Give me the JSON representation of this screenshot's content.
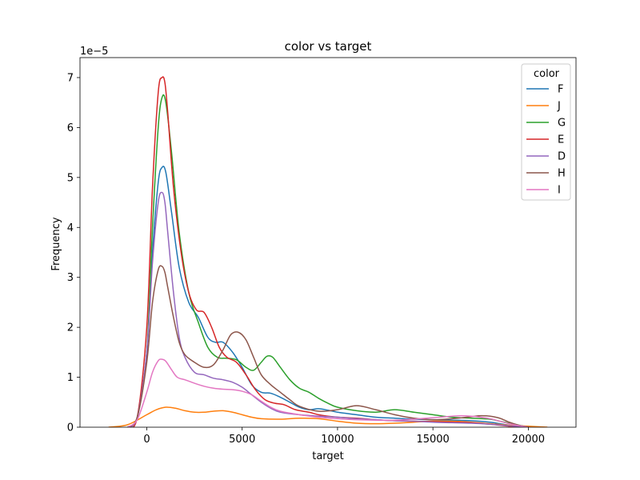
{
  "chart_data": {
    "type": "line",
    "title": "color vs target",
    "xlabel": "target",
    "ylabel": "Frequency",
    "y_offset_label": "1e−5",
    "xlim": [
      -3500,
      22500
    ],
    "ylim": [
      0,
      7.4
    ],
    "x_ticks": [
      0,
      5000,
      10000,
      15000,
      20000
    ],
    "x_tick_labels": [
      "0",
      "5000",
      "10000",
      "15000",
      "20000"
    ],
    "y_ticks": [
      0,
      1,
      2,
      3,
      4,
      5,
      6,
      7
    ],
    "y_tick_labels": [
      "0",
      "1",
      "2",
      "3",
      "4",
      "5",
      "6",
      "7"
    ],
    "grid": false,
    "legend": {
      "title": "color",
      "placement": "top-right"
    },
    "series": [
      {
        "name": "F",
        "color": "#1f77b4",
        "x": [
          -1000,
          -500,
          0,
          300,
          600,
          800,
          1000,
          1300,
          1700,
          2200,
          2700,
          3200,
          3600,
          4000,
          4500,
          5000,
          5500,
          6000,
          6500,
          7000,
          7500,
          8000,
          8500,
          9000,
          9500,
          10000,
          11000,
          12000,
          13000,
          14000,
          15000,
          16000,
          17000,
          18000,
          18500,
          19000,
          19500,
          20000
        ],
        "y": [
          0.0,
          0.2,
          1.5,
          3.5,
          4.9,
          5.2,
          5.1,
          4.3,
          3.2,
          2.5,
          2.2,
          1.8,
          1.7,
          1.7,
          1.5,
          1.2,
          0.85,
          0.7,
          0.68,
          0.6,
          0.5,
          0.4,
          0.35,
          0.37,
          0.34,
          0.3,
          0.25,
          0.2,
          0.18,
          0.16,
          0.15,
          0.14,
          0.13,
          0.1,
          0.07,
          0.04,
          0.02,
          0.0
        ]
      },
      {
        "name": "J",
        "color": "#ff7f0e",
        "x": [
          -2000,
          -1000,
          0,
          500,
          1000,
          1500,
          2000,
          2500,
          3000,
          3500,
          4000,
          4500,
          5000,
          5500,
          6000,
          7000,
          8000,
          9000,
          10000,
          11000,
          12000,
          13000,
          14000,
          15000,
          16000,
          17000,
          18000,
          19000,
          20000,
          21000
        ],
        "y": [
          0.0,
          0.05,
          0.25,
          0.35,
          0.4,
          0.38,
          0.33,
          0.3,
          0.3,
          0.32,
          0.33,
          0.3,
          0.25,
          0.2,
          0.17,
          0.16,
          0.18,
          0.17,
          0.12,
          0.08,
          0.07,
          0.08,
          0.1,
          0.12,
          0.12,
          0.1,
          0.07,
          0.04,
          0.02,
          0.0
        ]
      },
      {
        "name": "G",
        "color": "#2ca02c",
        "x": [
          -1000,
          -500,
          0,
          300,
          600,
          800,
          1000,
          1300,
          1700,
          2200,
          2700,
          3200,
          3700,
          4200,
          4700,
          5200,
          5600,
          6000,
          6300,
          6600,
          7000,
          7500,
          8000,
          8500,
          9000,
          9500,
          10000,
          11000,
          12000,
          13000,
          14000,
          15000,
          16000,
          17000,
          18000,
          18500,
          19000,
          19500,
          20000
        ],
        "y": [
          0.0,
          0.2,
          1.5,
          4.0,
          6.0,
          6.6,
          6.5,
          5.5,
          3.9,
          2.7,
          2.1,
          1.6,
          1.4,
          1.38,
          1.35,
          1.2,
          1.14,
          1.3,
          1.42,
          1.4,
          1.2,
          0.95,
          0.78,
          0.7,
          0.58,
          0.48,
          0.4,
          0.33,
          0.3,
          0.35,
          0.3,
          0.25,
          0.2,
          0.18,
          0.16,
          0.12,
          0.08,
          0.04,
          0.0
        ]
      },
      {
        "name": "E",
        "color": "#d62728",
        "x": [
          -1000,
          -500,
          0,
          300,
          600,
          800,
          950,
          1100,
          1400,
          1800,
          2200,
          2600,
          3000,
          3400,
          3800,
          4200,
          4700,
          5200,
          5700,
          6200,
          6700,
          7200,
          7800,
          8500,
          9000,
          9500,
          10000,
          11000,
          12000,
          13000,
          14000,
          15000,
          16000,
          17000,
          18000,
          18500,
          19000,
          19500,
          20000
        ],
        "y": [
          0.0,
          0.2,
          2.0,
          4.8,
          6.7,
          7.0,
          6.9,
          6.3,
          4.8,
          3.5,
          2.7,
          2.35,
          2.3,
          2.0,
          1.6,
          1.4,
          1.3,
          1.05,
          0.75,
          0.55,
          0.48,
          0.45,
          0.35,
          0.3,
          0.25,
          0.22,
          0.2,
          0.18,
          0.15,
          0.13,
          0.12,
          0.11,
          0.1,
          0.09,
          0.06,
          0.04,
          0.02,
          0.01,
          0.0
        ]
      },
      {
        "name": "D",
        "color": "#9467bd",
        "x": [
          -1000,
          -500,
          0,
          300,
          600,
          800,
          950,
          1100,
          1400,
          1700,
          2000,
          2500,
          3000,
          3500,
          4000,
          4500,
          5000,
          5500,
          6000,
          6500,
          7000,
          8000,
          9000,
          10000,
          11000,
          12000,
          13000,
          14000,
          15000,
          16000,
          17000,
          18000,
          19000,
          20000
        ],
        "y": [
          0.0,
          0.2,
          1.5,
          3.3,
          4.5,
          4.7,
          4.5,
          3.9,
          2.7,
          1.8,
          1.4,
          1.1,
          1.05,
          0.98,
          0.95,
          0.9,
          0.8,
          0.65,
          0.5,
          0.38,
          0.3,
          0.25,
          0.22,
          0.2,
          0.17,
          0.15,
          0.13,
          0.12,
          0.1,
          0.09,
          0.08,
          0.06,
          0.03,
          0.0
        ]
      },
      {
        "name": "H",
        "color": "#8c564b",
        "x": [
          -1000,
          -500,
          0,
          300,
          600,
          800,
          950,
          1100,
          1400,
          1700,
          2000,
          2500,
          3000,
          3500,
          4000,
          4400,
          4800,
          5200,
          5600,
          6000,
          6500,
          7000,
          7500,
          8000,
          9000,
          10000,
          11000,
          12000,
          13000,
          14000,
          15000,
          16000,
          17000,
          17500,
          18000,
          18500,
          19000,
          19500,
          20000
        ],
        "y": [
          0.0,
          0.2,
          1.3,
          2.5,
          3.15,
          3.22,
          3.1,
          2.8,
          2.2,
          1.7,
          1.45,
          1.3,
          1.2,
          1.25,
          1.55,
          1.85,
          1.9,
          1.75,
          1.4,
          1.05,
          0.85,
          0.7,
          0.55,
          0.42,
          0.32,
          0.35,
          0.43,
          0.35,
          0.25,
          0.18,
          0.15,
          0.17,
          0.21,
          0.23,
          0.22,
          0.18,
          0.1,
          0.04,
          0.0
        ]
      },
      {
        "name": "I",
        "color": "#e377c2",
        "x": [
          -1000,
          -500,
          0,
          300,
          600,
          800,
          1000,
          1300,
          1600,
          2000,
          2500,
          3000,
          3500,
          4000,
          4500,
          5000,
          5500,
          6000,
          6500,
          7000,
          8000,
          9000,
          10000,
          11000,
          12000,
          13000,
          14000,
          15000,
          16000,
          16500,
          17000,
          17500,
          18000,
          18500,
          19000,
          19500,
          20000
        ],
        "y": [
          0.0,
          0.15,
          0.7,
          1.1,
          1.33,
          1.36,
          1.32,
          1.15,
          1.0,
          0.95,
          0.88,
          0.82,
          0.78,
          0.76,
          0.75,
          0.72,
          0.65,
          0.52,
          0.4,
          0.32,
          0.25,
          0.2,
          0.17,
          0.15,
          0.14,
          0.14,
          0.16,
          0.19,
          0.22,
          0.23,
          0.22,
          0.2,
          0.17,
          0.12,
          0.07,
          0.03,
          0.0
        ]
      }
    ]
  }
}
